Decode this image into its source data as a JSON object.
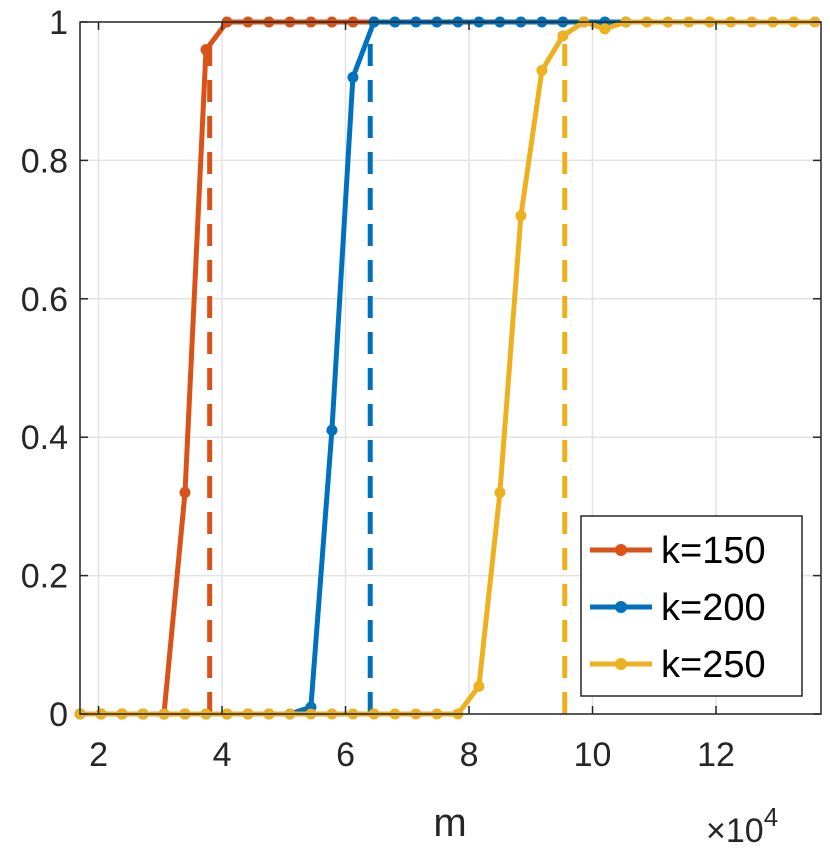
{
  "chart_data": {
    "type": "line",
    "xlabel": "m",
    "ylabel": "",
    "x_exponent_label": "×10",
    "x_exponent_power": "4",
    "xlim": [
      1.7,
      13.7
    ],
    "ylim": [
      0,
      1
    ],
    "x_ticks": [
      2,
      4,
      6,
      8,
      10,
      12
    ],
    "y_ticks": [
      0,
      0.2,
      0.4,
      0.6,
      0.8,
      1
    ],
    "x_tick_labels": [
      "2",
      "4",
      "6",
      "8",
      "10",
      "12"
    ],
    "y_tick_labels": [
      "0",
      "0.2",
      "0.4",
      "0.6",
      "0.8",
      "1"
    ],
    "grid": true,
    "legend_position": "bottom-right",
    "colors": {
      "k150": "#D95319",
      "k200": "#0072BD",
      "k250": "#EDB120",
      "grid": "#e3e3e3",
      "axis": "#262626"
    },
    "series": [
      {
        "name": "k=150",
        "color": "#D95319",
        "threshold_x": 3.8,
        "points": [
          [
            1.7,
            0
          ],
          [
            2.04,
            0
          ],
          [
            2.38,
            0
          ],
          [
            2.72,
            0
          ],
          [
            3.06,
            0
          ],
          [
            3.4,
            0.32
          ],
          [
            3.74,
            0.96
          ],
          [
            4.08,
            1
          ],
          [
            4.42,
            1
          ],
          [
            4.76,
            1
          ],
          [
            5.1,
            1
          ],
          [
            5.44,
            1
          ],
          [
            5.78,
            1
          ],
          [
            6.12,
            1
          ],
          [
            6.46,
            1
          ]
        ]
      },
      {
        "name": "k=200",
        "color": "#0072BD",
        "threshold_x": 6.4,
        "points": [
          [
            1.7,
            0
          ],
          [
            2.04,
            0
          ],
          [
            2.38,
            0
          ],
          [
            2.72,
            0
          ],
          [
            3.06,
            0
          ],
          [
            3.4,
            0
          ],
          [
            3.74,
            0
          ],
          [
            4.08,
            0
          ],
          [
            4.42,
            0
          ],
          [
            4.76,
            0
          ],
          [
            5.1,
            0
          ],
          [
            5.44,
            0.01
          ],
          [
            5.78,
            0.41
          ],
          [
            6.12,
            0.92
          ],
          [
            6.46,
            1
          ],
          [
            6.8,
            1
          ],
          [
            7.14,
            1
          ],
          [
            7.48,
            1
          ],
          [
            7.82,
            1
          ],
          [
            8.16,
            1
          ],
          [
            8.5,
            1
          ],
          [
            8.84,
            1
          ],
          [
            9.18,
            1
          ],
          [
            9.52,
            1
          ],
          [
            9.86,
            1
          ],
          [
            10.2,
            1
          ],
          [
            10.54,
            1
          ]
        ]
      },
      {
        "name": "k=250",
        "color": "#EDB120",
        "threshold_x": 9.55,
        "points": [
          [
            1.7,
            0
          ],
          [
            2.04,
            0
          ],
          [
            2.38,
            0
          ],
          [
            2.72,
            0
          ],
          [
            3.06,
            0
          ],
          [
            3.4,
            0
          ],
          [
            3.74,
            0
          ],
          [
            4.08,
            0
          ],
          [
            4.42,
            0
          ],
          [
            4.76,
            0
          ],
          [
            5.1,
            0
          ],
          [
            5.44,
            0
          ],
          [
            5.78,
            0
          ],
          [
            6.12,
            0
          ],
          [
            6.46,
            0
          ],
          [
            6.8,
            0
          ],
          [
            7.14,
            0
          ],
          [
            7.48,
            0
          ],
          [
            7.82,
            0
          ],
          [
            8.16,
            0.04
          ],
          [
            8.5,
            0.32
          ],
          [
            8.84,
            0.72
          ],
          [
            9.18,
            0.93
          ],
          [
            9.52,
            0.98
          ],
          [
            9.86,
            1
          ],
          [
            10.2,
            0.99
          ],
          [
            10.54,
            1
          ],
          [
            10.88,
            1
          ],
          [
            11.22,
            1
          ],
          [
            11.56,
            1
          ],
          [
            11.9,
            1
          ],
          [
            12.24,
            1
          ],
          [
            12.58,
            1
          ],
          [
            12.92,
            1
          ],
          [
            13.26,
            1
          ],
          [
            13.6,
            1
          ]
        ]
      }
    ]
  }
}
